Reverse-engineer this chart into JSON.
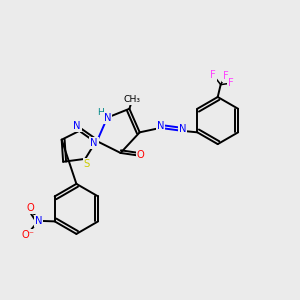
{
  "bg_color": "#ebebeb",
  "atom_colors": {
    "N": "#0000ff",
    "O": "#ff0000",
    "S": "#cccc00",
    "F": "#ff44ff",
    "C": "#000000",
    "H": "#008888"
  },
  "bond_color": "#000000"
}
